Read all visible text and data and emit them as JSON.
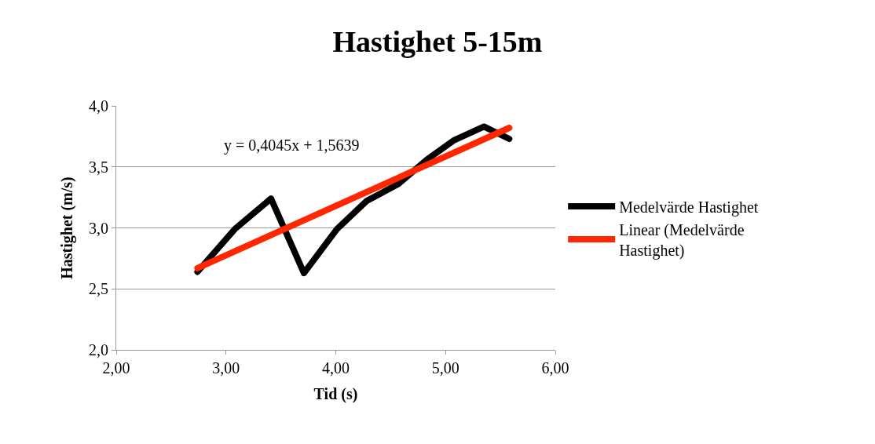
{
  "chart_data": {
    "type": "line",
    "title": "Hastighet 5-15m",
    "xlabel": "Tid (s)",
    "ylabel": "Hastighet (m/s)",
    "series": [
      {
        "name": "Medelvärde Hastighet",
        "color": "#000000",
        "x": [
          2.74,
          3.08,
          3.41,
          3.71,
          4.01,
          4.28,
          4.57,
          4.83,
          5.08,
          5.35,
          5.58
        ],
        "values": [
          2.64,
          2.99,
          3.24,
          2.63,
          2.99,
          3.22,
          3.36,
          3.56,
          3.72,
          3.83,
          3.73
        ]
      },
      {
        "name": "Linear (Medelvärde Hastighet)",
        "color": "#ff2600",
        "x": [
          2.74,
          5.58
        ],
        "values": [
          2.67,
          3.82
        ]
      }
    ],
    "annotations": [
      "y = 0,4045x + 1,5639"
    ],
    "xlim": [
      2,
      6
    ],
    "xticks": [
      {
        "value": 2,
        "label": "2,00"
      },
      {
        "value": 3,
        "label": "3,00"
      },
      {
        "value": 4,
        "label": "4,00"
      },
      {
        "value": 5,
        "label": "5,00"
      },
      {
        "value": 6,
        "label": "6,00"
      }
    ],
    "ylim": [
      2,
      4
    ],
    "yticks": [
      {
        "value": 2,
        "label": "2,0"
      },
      {
        "value": 2.5,
        "label": "2,5"
      },
      {
        "value": 3,
        "label": "3,0"
      },
      {
        "value": 3.5,
        "label": "3,5"
      },
      {
        "value": 4,
        "label": "4,0"
      }
    ],
    "grid": "y",
    "legend": "right",
    "line_style": "solid"
  }
}
